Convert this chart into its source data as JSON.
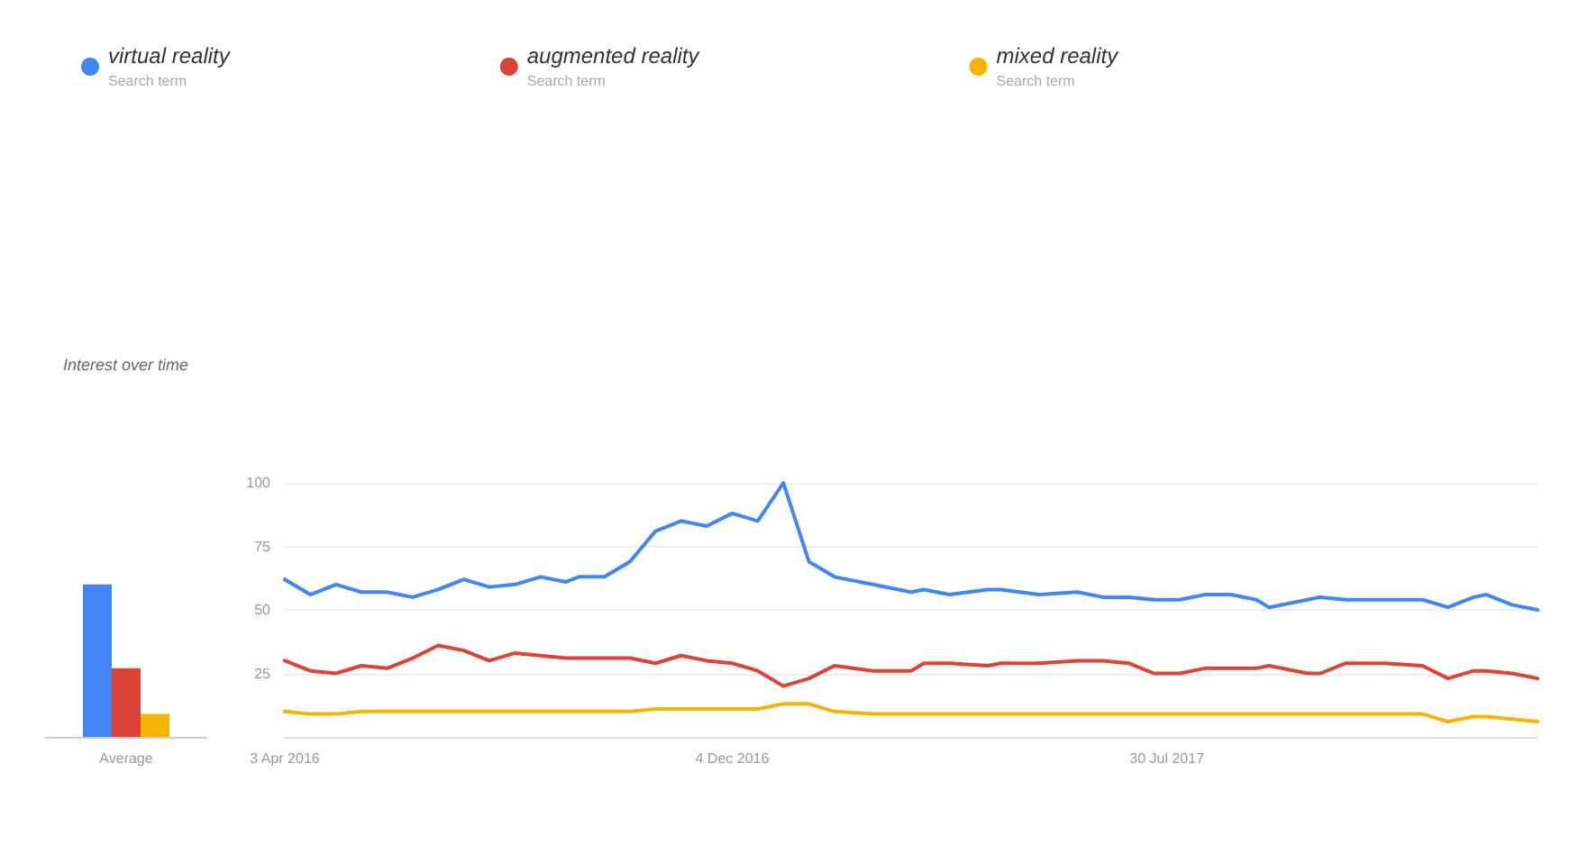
{
  "chart_data": [
    {
      "type": "bar",
      "title": "Interest over time",
      "categories": [
        "Average"
      ],
      "ylim": [
        0,
        100
      ],
      "tick_labels": "x",
      "series": [
        {
          "color": "#4285f4",
          "values": [
            60
          ]
        },
        {
          "color": "#db4437",
          "values": [
            27
          ]
        },
        {
          "color": "#f4b400",
          "values": [
            9
          ]
        }
      ]
    },
    {
      "type": "line",
      "annotations": [
        "Search term",
        "Search term",
        "Search term"
      ],
      "legend": "top left",
      "grid": "y",
      "xlim": [
        "2016-04-03",
        "2018-02-18"
      ],
      "xticks": [
        {
          "value": "2016-04-03",
          "label": "3 Apr 2016"
        },
        {
          "value": "2016-12-04",
          "label": "4 Dec 2016"
        },
        {
          "value": "2017-07-30",
          "label": "30 Jul 2017"
        }
      ],
      "ylim": [
        0,
        100
      ],
      "yticks": [
        25,
        50,
        75,
        100
      ],
      "x": [
        "2016-04-03",
        "2016-04-17",
        "2016-05-01",
        "2016-05-15",
        "2016-05-29",
        "2016-06-12",
        "2016-06-26",
        "2016-07-10",
        "2016-07-24",
        "2016-08-07",
        "2016-08-21",
        "2016-09-04",
        "2016-09-11",
        "2016-09-25",
        "2016-10-09",
        "2016-10-23",
        "2016-11-06",
        "2016-11-20",
        "2016-12-04",
        "2016-12-18",
        "2017-01-01",
        "2017-01-15",
        "2017-01-29",
        "2017-02-19",
        "2017-03-12",
        "2017-03-19",
        "2017-04-02",
        "2017-04-23",
        "2017-04-30",
        "2017-05-21",
        "2017-06-11",
        "2017-06-25",
        "2017-07-09",
        "2017-07-23",
        "2017-08-06",
        "2017-08-20",
        "2017-09-03",
        "2017-09-17",
        "2017-09-24",
        "2017-10-15",
        "2017-10-22",
        "2017-11-05",
        "2017-11-26",
        "2017-12-17",
        "2017-12-31",
        "2018-01-14",
        "2018-01-21",
        "2018-02-04",
        "2018-02-18"
      ],
      "series": [
        {
          "name": "virtual reality",
          "color": "#4285f4",
          "values": [
            62,
            56,
            60,
            57,
            57,
            55,
            58,
            62,
            59,
            60,
            63,
            61,
            63,
            63,
            69,
            81,
            85,
            83,
            88,
            85,
            100,
            69,
            63,
            60,
            57,
            58,
            56,
            58,
            58,
            56,
            57,
            55,
            55,
            54,
            54,
            56,
            56,
            54,
            51,
            54,
            55,
            54,
            54,
            54,
            51,
            55,
            56,
            52,
            50
          ]
        },
        {
          "name": "augmented reality",
          "color": "#db4437",
          "values": [
            30,
            26,
            25,
            28,
            27,
            31,
            36,
            34,
            30,
            33,
            32,
            31,
            31,
            31,
            31,
            29,
            32,
            30,
            29,
            26,
            20,
            23,
            28,
            26,
            26,
            29,
            29,
            28,
            29,
            29,
            30,
            30,
            29,
            25,
            25,
            27,
            27,
            27,
            28,
            25,
            25,
            29,
            29,
            28,
            23,
            26,
            26,
            25,
            23
          ]
        },
        {
          "name": "mixed reality",
          "color": "#f4b400",
          "values": [
            10,
            9,
            9,
            10,
            10,
            10,
            10,
            10,
            10,
            10,
            10,
            10,
            10,
            10,
            10,
            11,
            11,
            11,
            11,
            11,
            13,
            13,
            10,
            9,
            9,
            9,
            9,
            9,
            9,
            9,
            9,
            9,
            9,
            9,
            9,
            9,
            9,
            9,
            9,
            9,
            9,
            9,
            9,
            9,
            6,
            8,
            8,
            7,
            6
          ]
        }
      ]
    }
  ]
}
